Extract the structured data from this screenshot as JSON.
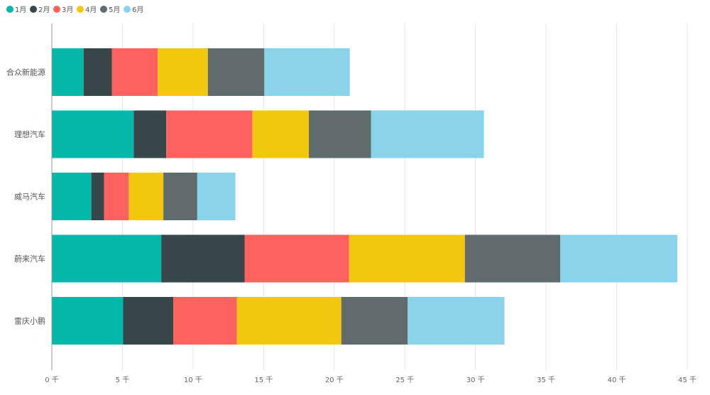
{
  "chart_data": {
    "type": "bar",
    "orientation": "horizontal",
    "stacked": true,
    "categories": [
      "合众新能源",
      "理想汽车",
      "威马汽车",
      "蔚来汽车",
      "雷庆小鹏"
    ],
    "series": [
      {
        "name": "1月",
        "color": "#01B8AA",
        "values": [
          2.25,
          5.8,
          2.8,
          7.75,
          5.05
        ]
      },
      {
        "name": "2月",
        "color": "#374649",
        "values": [
          2.0,
          2.3,
          0.9,
          5.9,
          3.55
        ]
      },
      {
        "name": "3月",
        "color": "#FD625E",
        "values": [
          3.25,
          6.1,
          1.75,
          7.4,
          4.5
        ]
      },
      {
        "name": "4月",
        "color": "#F2C80F",
        "values": [
          3.55,
          4.0,
          2.45,
          8.2,
          7.4
        ]
      },
      {
        "name": "5月",
        "color": "#5F6B6D",
        "values": [
          4.0,
          4.4,
          2.4,
          6.75,
          4.7
        ]
      },
      {
        "name": "6月",
        "color": "#8AD4EB",
        "values": [
          6.05,
          8.0,
          2.7,
          8.3,
          6.85
        ]
      }
    ],
    "xticks": [
      "0 千",
      "5 千",
      "10 千",
      "15 千",
      "20 千",
      "25 千",
      "30 千",
      "35 千",
      "40 千",
      "45 千"
    ],
    "xlim": [
      0,
      45
    ],
    "tick_step": 5,
    "grid": true,
    "legend_position": "top-left",
    "title": "",
    "xlabel": "",
    "ylabel": ""
  }
}
